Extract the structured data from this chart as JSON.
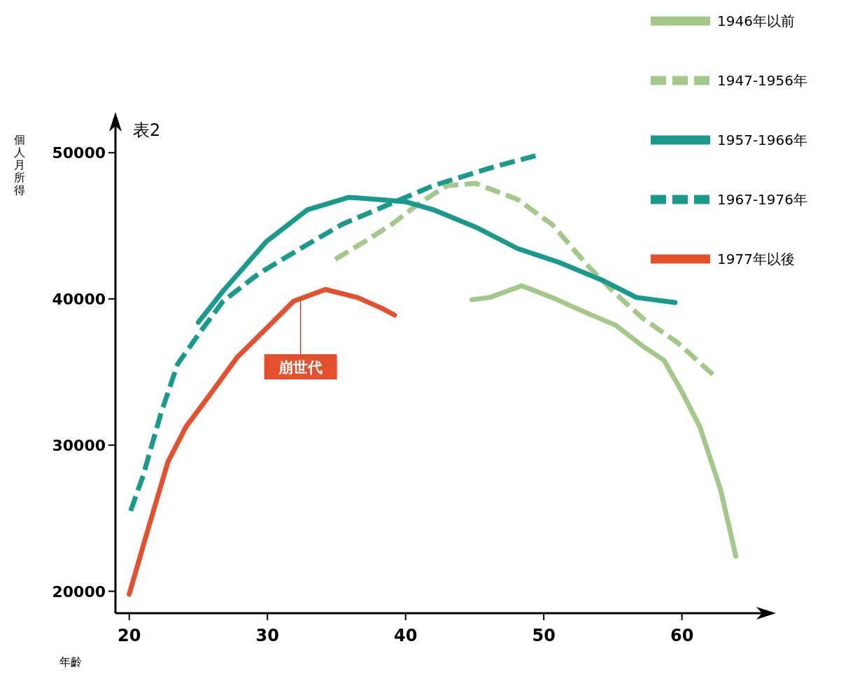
{
  "chart_data": {
    "type": "line",
    "title": "表2",
    "xlabel": "年齡",
    "ylabel": "個人月所得",
    "xlim": [
      19,
      66.5
    ],
    "ylim": [
      18500,
      52500
    ],
    "xticks": [
      20,
      30,
      40,
      50,
      60
    ],
    "yticks": [
      20000,
      30000,
      40000,
      50000
    ],
    "grid": false,
    "legend": "top right",
    "annotations": [
      {
        "text": "崩世代",
        "x": 32.4,
        "y": 40000
      }
    ],
    "series": [
      {
        "name": "1946年以前",
        "color": "#a3c98a",
        "line_style": "solid",
        "x": [
          44.8,
          46.1,
          48.4,
          50.6,
          53.2,
          55.2,
          57.2,
          58.7,
          60,
          61.3,
          62.8,
          63.9
        ],
        "values": [
          39950,
          40100,
          40900,
          40100,
          39000,
          38200,
          36750,
          35800,
          33650,
          31250,
          26950,
          22400
        ]
      },
      {
        "name": "1947-1956年",
        "color": "#a3c98a",
        "line_style": "dashed",
        "x": [
          34.9,
          37,
          39,
          41,
          43,
          45.1,
          48.1,
          50.6,
          53.2,
          55.2,
          57.2,
          59.7,
          62.5
        ],
        "values": [
          42700,
          43900,
          45100,
          46550,
          47750,
          47900,
          46800,
          45100,
          42250,
          40350,
          38650,
          37000,
          34600
        ]
      },
      {
        "name": "1957-1966年",
        "color": "#1a9a8c",
        "line_style": "solid",
        "x": [
          25,
          26.8,
          29.9,
          32.9,
          35.9,
          38,
          40,
          42,
          45.1,
          48.1,
          51.1,
          54.2,
          56.7,
          59.5
        ],
        "values": [
          38400,
          40550,
          43900,
          46100,
          46950,
          46800,
          46650,
          46100,
          44900,
          43450,
          42500,
          41300,
          40100,
          39750
        ]
      },
      {
        "name": "1967-1976年",
        "color": "#1a9a8c",
        "line_style": "dashed",
        "x": [
          20.1,
          21,
          22.3,
          23.5,
          25.1,
          26.8,
          29.4,
          32.4,
          35.4,
          39,
          42,
          46.1,
          49.4
        ],
        "values": [
          25500,
          27900,
          32200,
          35550,
          37700,
          39850,
          41750,
          43450,
          45100,
          46550,
          47750,
          48950,
          49800
        ]
      },
      {
        "name": "1977年以後",
        "color": "#e4502e",
        "line_style": "solid",
        "x": [
          20,
          21.3,
          22.8,
          24.1,
          25.8,
          27.8,
          29.9,
          31.9,
          34.2,
          36.5,
          38.2,
          39.2
        ],
        "values": [
          19800,
          24050,
          28850,
          31250,
          33400,
          36000,
          37950,
          39850,
          40650,
          40100,
          39400,
          38900
        ]
      }
    ]
  }
}
